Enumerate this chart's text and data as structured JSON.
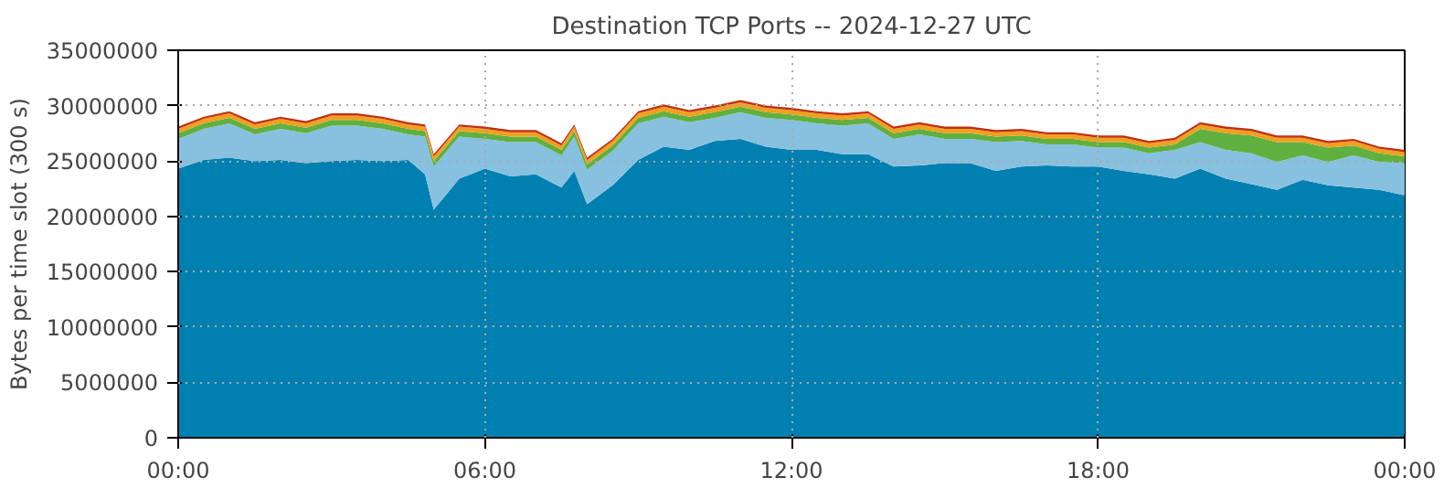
{
  "chart_data": {
    "type": "area",
    "stacked": true,
    "title": "Destination TCP Ports -- 2024-12-27 UTC",
    "ylabel": "Bytes per time slot (300 s)",
    "x": [
      0,
      0.5,
      1,
      1.5,
      2,
      2.5,
      3,
      3.5,
      4,
      4.5,
      4.83,
      5,
      5.5,
      6,
      6.5,
      7,
      7.5,
      7.75,
      8,
      8.5,
      9,
      9.5,
      10,
      10.5,
      11,
      11.5,
      12,
      12.5,
      13,
      13.5,
      14,
      14.5,
      15,
      15.5,
      16,
      16.5,
      17,
      17.5,
      18,
      18.5,
      19,
      19.5,
      20,
      20.5,
      21,
      21.5,
      22,
      22.5,
      23,
      23.5,
      24
    ],
    "series": [
      {
        "color": "#0080b0",
        "values": [
          24300000,
          25100000,
          25300000,
          25000000,
          25100000,
          24800000,
          25000000,
          25100000,
          25000000,
          25100000,
          23800000,
          20600000,
          23400000,
          24300000,
          23600000,
          23800000,
          22600000,
          24100000,
          21100000,
          22800000,
          25100000,
          26300000,
          26000000,
          26800000,
          27000000,
          26300000,
          26000000,
          26000000,
          25600000,
          25600000,
          24500000,
          24600000,
          24800000,
          24800000,
          24100000,
          24500000,
          24600000,
          24500000,
          24500000,
          24100000,
          23800000,
          23400000,
          24300000,
          23400000,
          22900000,
          22400000,
          23300000,
          22800000,
          22600000,
          22400000,
          21900000
        ]
      },
      {
        "color": "#88c0e0",
        "values": [
          2700000,
          2800000,
          3100000,
          2400000,
          2800000,
          2700000,
          3200000,
          3100000,
          2900000,
          2300000,
          3400000,
          3900000,
          3800000,
          2700000,
          3100000,
          2900000,
          2900000,
          3100000,
          3100000,
          3100000,
          3300000,
          2700000,
          2500000,
          2100000,
          2400000,
          2600000,
          2700000,
          2400000,
          2600000,
          2800000,
          2500000,
          2800000,
          2200000,
          2200000,
          2600000,
          2300000,
          1900000,
          2000000,
          1700000,
          2100000,
          1900000,
          2600000,
          2400000,
          2600000,
          2800000,
          2500000,
          2200000,
          2100000,
          2900000,
          2500000,
          2900000
        ]
      },
      {
        "color": "#60b040",
        "values": [
          500000,
          500000,
          500000,
          500000,
          500000,
          500000,
          500000,
          500000,
          500000,
          500000,
          500000,
          500000,
          500000,
          500000,
          500000,
          500000,
          500000,
          500000,
          500000,
          500000,
          500000,
          500000,
          500000,
          500000,
          500000,
          500000,
          500000,
          500000,
          500000,
          500000,
          500000,
          500000,
          500000,
          500000,
          500000,
          500000,
          500000,
          500000,
          500000,
          500000,
          500000,
          500000,
          1200000,
          1500000,
          1600000,
          1800000,
          1200000,
          1300000,
          900000,
          800000,
          600000
        ]
      },
      {
        "color": "#f0a020",
        "values": [
          400000,
          400000,
          400000,
          400000,
          400000,
          400000,
          400000,
          400000,
          400000,
          400000,
          400000,
          400000,
          400000,
          400000,
          400000,
          400000,
          400000,
          400000,
          400000,
          400000,
          400000,
          400000,
          400000,
          400000,
          400000,
          400000,
          400000,
          400000,
          400000,
          400000,
          400000,
          400000,
          400000,
          400000,
          400000,
          400000,
          400000,
          400000,
          400000,
          400000,
          400000,
          400000,
          400000,
          400000,
          400000,
          400000,
          400000,
          400000,
          400000,
          400000,
          400000
        ]
      },
      {
        "color": "#c03010",
        "values": [
          200000,
          200000,
          200000,
          200000,
          200000,
          200000,
          200000,
          200000,
          200000,
          200000,
          200000,
          200000,
          200000,
          200000,
          200000,
          200000,
          200000,
          200000,
          200000,
          200000,
          200000,
          200000,
          200000,
          200000,
          200000,
          200000,
          200000,
          200000,
          200000,
          200000,
          200000,
          200000,
          200000,
          200000,
          200000,
          200000,
          200000,
          200000,
          200000,
          200000,
          200000,
          200000,
          200000,
          200000,
          200000,
          200000,
          200000,
          200000,
          200000,
          200000,
          200000
        ]
      }
    ],
    "xlim": [
      0,
      24
    ],
    "xticks": [
      {
        "value": 0,
        "label": "00:00"
      },
      {
        "value": 6,
        "label": "06:00"
      },
      {
        "value": 12,
        "label": "12:00"
      },
      {
        "value": 18,
        "label": "18:00"
      },
      {
        "value": 24,
        "label": "00:00"
      }
    ],
    "ylim": [
      0,
      35000000
    ],
    "yticks": [
      0,
      5000000,
      10000000,
      15000000,
      20000000,
      25000000,
      30000000,
      35000000
    ],
    "grid": true
  }
}
